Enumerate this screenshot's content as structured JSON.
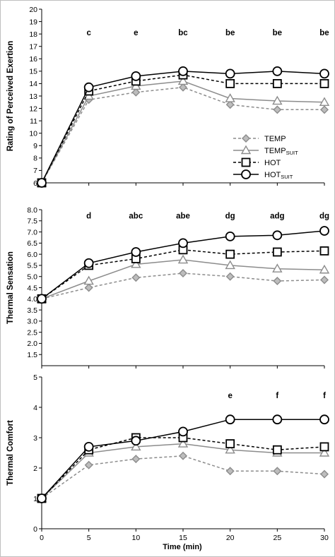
{
  "figure": {
    "x_label": "Time  (min)",
    "legend": {
      "placement": "right-middle of top panel",
      "entries": [
        {
          "series": "TEMP",
          "base": "TEMP",
          "sub": ""
        },
        {
          "series": "TEMP_SUIT",
          "base": "TEMP",
          "sub": "SUIT"
        },
        {
          "series": "HOT",
          "base": "HOT",
          "sub": ""
        },
        {
          "series": "HOT_SUIT",
          "base": "HOT",
          "sub": "SUIT"
        }
      ]
    },
    "series_style": {
      "TEMP": {
        "color": "#8c8c8c",
        "dash": true,
        "marker": "diamond",
        "fill": "#bdbdbd"
      },
      "TEMP_SUIT": {
        "color": "#8c8c8c",
        "dash": false,
        "marker": "triangle",
        "fill": "#ffffff"
      },
      "HOT": {
        "color": "#000000",
        "dash": true,
        "marker": "square",
        "fill": "#ffffff"
      },
      "HOT_SUIT": {
        "color": "#000000",
        "dash": false,
        "marker": "circle",
        "fill": "#ffffff"
      }
    }
  },
  "chart_data": [
    {
      "type": "line",
      "ylabel": "Rating of Perceived Exertion",
      "xlabel": "",
      "x": [
        0,
        5,
        10,
        15,
        20,
        25,
        30
      ],
      "xlim": [
        0,
        30
      ],
      "ylim": [
        6,
        20
      ],
      "yticks": [
        "6",
        "7",
        "8",
        "9",
        "10",
        "11",
        "12",
        "13",
        "14",
        "15",
        "16",
        "17",
        "18",
        "19",
        "20"
      ],
      "xticks": [],
      "annotations": [
        {
          "x": 5,
          "text": "c"
        },
        {
          "x": 10,
          "text": "e"
        },
        {
          "x": 15,
          "text": "bc"
        },
        {
          "x": 20,
          "text": "be"
        },
        {
          "x": 25,
          "text": "be"
        },
        {
          "x": 30,
          "text": "be"
        }
      ],
      "annotation_y": 17.9,
      "series": [
        {
          "name": "TEMP",
          "values": [
            6,
            12.7,
            13.3,
            13.7,
            12.3,
            11.9,
            11.9
          ]
        },
        {
          "name": "TEMP_SUIT",
          "values": [
            6,
            13.0,
            13.8,
            14.2,
            12.8,
            12.6,
            12.5
          ]
        },
        {
          "name": "HOT",
          "values": [
            6,
            13.4,
            14.2,
            14.7,
            14.0,
            14.0,
            14.0
          ]
        },
        {
          "name": "HOT_SUIT",
          "values": [
            6,
            13.7,
            14.6,
            15.0,
            14.8,
            15.0,
            14.8
          ]
        }
      ]
    },
    {
      "type": "line",
      "ylabel": "Thermal Sensation",
      "xlabel": "",
      "x": [
        0,
        5,
        10,
        15,
        20,
        25,
        30
      ],
      "xlim": [
        0,
        30
      ],
      "ylim": [
        1.0,
        8.0
      ],
      "yticks": [
        "1.5",
        "2.0",
        "2.5",
        "3.0",
        "3.5",
        "4.0",
        "4.5",
        "5.0",
        "5.5",
        "6.0",
        "6.5",
        "7.0",
        "7.5",
        "8.0"
      ],
      "xticks": [],
      "annotations": [
        {
          "x": 5,
          "text": "d"
        },
        {
          "x": 10,
          "text": "abc"
        },
        {
          "x": 15,
          "text": "abe"
        },
        {
          "x": 20,
          "text": "dg"
        },
        {
          "x": 25,
          "text": "adg"
        },
        {
          "x": 30,
          "text": "dg"
        }
      ],
      "annotation_y": 7.6,
      "series": [
        {
          "name": "TEMP",
          "values": [
            4.0,
            4.5,
            4.95,
            5.15,
            5.0,
            4.8,
            4.85
          ]
        },
        {
          "name": "TEMP_SUIT",
          "values": [
            4.0,
            4.8,
            5.55,
            5.75,
            5.5,
            5.35,
            5.3
          ]
        },
        {
          "name": "HOT",
          "values": [
            4.0,
            5.5,
            5.8,
            6.2,
            6.0,
            6.1,
            6.15
          ]
        },
        {
          "name": "HOT_SUIT",
          "values": [
            4.0,
            5.6,
            6.1,
            6.5,
            6.8,
            6.85,
            7.05
          ]
        }
      ]
    },
    {
      "type": "line",
      "ylabel": "Thermal Comfort",
      "xlabel": "Time  (min)",
      "x": [
        0,
        5,
        10,
        15,
        20,
        25,
        30
      ],
      "xlim": [
        0,
        30
      ],
      "ylim": [
        0,
        5
      ],
      "yticks": [
        "0",
        "1",
        "2",
        "3",
        "4",
        "5"
      ],
      "xticks": [
        "0",
        "5",
        "10",
        "15",
        "20",
        "25",
        "30"
      ],
      "annotations": [
        {
          "x": 20,
          "text": "e"
        },
        {
          "x": 25,
          "text": "f"
        },
        {
          "x": 30,
          "text": "f"
        }
      ],
      "annotation_y": 4.3,
      "series": [
        {
          "name": "TEMP",
          "values": [
            1,
            2.1,
            2.3,
            2.4,
            1.9,
            1.9,
            1.8
          ]
        },
        {
          "name": "TEMP_SUIT",
          "values": [
            1,
            2.5,
            2.7,
            2.8,
            2.6,
            2.5,
            2.5
          ]
        },
        {
          "name": "HOT",
          "values": [
            1,
            2.6,
            3.0,
            3.0,
            2.8,
            2.6,
            2.7
          ]
        },
        {
          "name": "HOT_SUIT",
          "values": [
            1,
            2.7,
            2.9,
            3.2,
            3.6,
            3.6,
            3.6
          ]
        }
      ]
    }
  ]
}
